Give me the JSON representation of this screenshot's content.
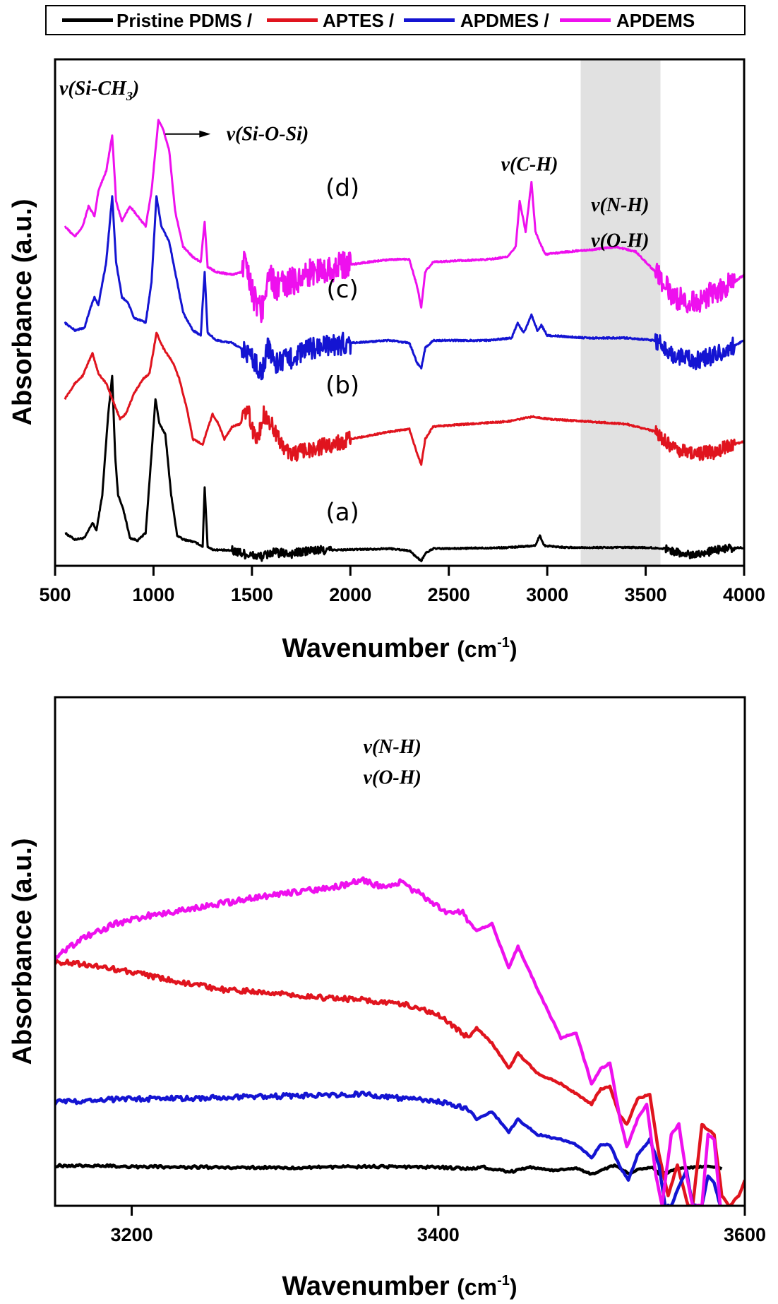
{
  "legend": {
    "entries": [
      {
        "label": "Pristine PDMS /",
        "color": "#000000"
      },
      {
        "label": "APTES /",
        "color": "#e0141e"
      },
      {
        "label": "APDMES /",
        "color": "#1414d2"
      },
      {
        "label": "APDEMS",
        "color": "#ee10ee"
      }
    ]
  },
  "chart_data": [
    {
      "type": "line",
      "title": "",
      "xlabel": "Wavenumber (cm-1)",
      "xlabel_main": "Wavenumber ",
      "xlabel_unit": "(cm",
      "xlabel_sup": "-1",
      "xlabel_close": ")",
      "ylabel": "Absorbance (a.u.)",
      "xlim": [
        500,
        4000
      ],
      "ylim": [
        0,
        100
      ],
      "xticks": [
        500,
        1000,
        1500,
        2000,
        2500,
        3000,
        3500,
        4000
      ],
      "grid": false,
      "legend_position": "top",
      "highlight_band": {
        "from": 3170,
        "to": 3575,
        "color": "#e1e1e1"
      },
      "curve_labels": [
        {
          "text": "(d)",
          "x": 1960,
          "y": 73
        },
        {
          "text": "(c)",
          "x": 1960,
          "y": 53
        },
        {
          "text": "(b)",
          "x": 1960,
          "y": 34
        },
        {
          "text": "(a)",
          "x": 1960,
          "y": 9
        }
      ],
      "annotations": [
        {
          "text": "v(Si-CH",
          "sub": "3",
          "close": ")",
          "x": 540,
          "y": 93
        },
        {
          "text": "v(Si-O-Si)",
          "x": 1370,
          "y": 84,
          "arrow_from": 1060,
          "arrow_to": 1290
        },
        {
          "text": "v(C-H)",
          "x": 2910,
          "y": 78
        },
        {
          "text": "v(N-H)",
          "x": 3370,
          "y": 70
        },
        {
          "text": "v(O-H)",
          "x": 3370,
          "y": 63
        }
      ],
      "series": [
        {
          "name": "Pristine PDMS",
          "label": "(a)",
          "color": "#000000",
          "x": [
            550,
            600,
            650,
            690,
            710,
            740,
            770,
            790,
            805,
            820,
            840,
            860,
            880,
            920,
            960,
            990,
            1010,
            1030,
            1060,
            1090,
            1120,
            1150,
            1180,
            1220,
            1250,
            1260,
            1275,
            1300,
            1400,
            1500,
            1550,
            1600,
            1700,
            1800,
            2000,
            2200,
            2300,
            2340,
            2360,
            2380,
            2420,
            2500,
            2800,
            2900,
            2940,
            2962,
            2985,
            3100,
            3500,
            3600,
            3700,
            3800,
            3900,
            4000
          ],
          "y": [
            6.5,
            5.2,
            5.5,
            8.5,
            7.0,
            14.0,
            30.0,
            37.5,
            22.0,
            14.0,
            12.0,
            9.0,
            5.5,
            5.0,
            6.5,
            22.0,
            33.0,
            28.0,
            26.0,
            14.0,
            6.0,
            5.2,
            5.0,
            4.5,
            3.8,
            15.6,
            3.8,
            3.2,
            3.0,
            2.0,
            1.8,
            2.6,
            2.4,
            3.0,
            3.2,
            3.4,
            3.0,
            1.6,
            1.0,
            2.4,
            3.4,
            3.4,
            3.6,
            3.9,
            4.0,
            6.0,
            4.0,
            3.6,
            3.6,
            3.4,
            2.2,
            2.6,
            3.4,
            3.6
          ],
          "noisy": [
            [
              1400,
              1900,
              0.9
            ],
            [
              3600,
              3950,
              0.8
            ]
          ]
        },
        {
          "name": "APTES",
          "label": "(b)",
          "color": "#e0141e",
          "x": [
            550,
            600,
            640,
            690,
            720,
            760,
            800,
            830,
            860,
            900,
            950,
            980,
            1015,
            1050,
            1100,
            1130,
            1170,
            1200,
            1250,
            1300,
            1330,
            1360,
            1400,
            1440,
            1480,
            1500,
            1530,
            1560,
            1600,
            1650,
            1700,
            1800,
            2000,
            2200,
            2300,
            2340,
            2360,
            2380,
            2420,
            2600,
            2800,
            2930,
            3000,
            3200,
            3400,
            3550,
            3650,
            3750,
            3850,
            3950,
            4000
          ],
          "y": [
            33.0,
            36.0,
            37.5,
            42.0,
            38.0,
            36.0,
            32.0,
            29.0,
            30.0,
            34.0,
            37.0,
            38.0,
            46.0,
            43.0,
            40.0,
            37.0,
            31.0,
            25.0,
            24.0,
            30.0,
            28.0,
            25.0,
            27.5,
            28.0,
            31.0,
            27.0,
            25.0,
            30.0,
            28.0,
            24.0,
            22.0,
            23.0,
            25.0,
            26.5,
            27.0,
            22.0,
            20.0,
            25.0,
            27.5,
            28.0,
            28.5,
            29.5,
            29.0,
            28.5,
            28.0,
            26.5,
            23.0,
            22.0,
            22.5,
            24.0,
            24.5
          ],
          "noisy": [
            [
              1450,
              2000,
              1.6
            ],
            [
              3550,
              3950,
              1.4
            ]
          ]
        },
        {
          "name": "APDMES",
          "label": "(c)",
          "color": "#1414d2",
          "x": [
            550,
            600,
            650,
            680,
            700,
            720,
            760,
            790,
            810,
            840,
            870,
            900,
            960,
            990,
            1015,
            1040,
            1080,
            1110,
            1150,
            1200,
            1240,
            1260,
            1275,
            1320,
            1400,
            1480,
            1520,
            1550,
            1580,
            1620,
            1700,
            1800,
            2000,
            2200,
            2300,
            2340,
            2360,
            2380,
            2420,
            2700,
            2820,
            2850,
            2880,
            2920,
            2950,
            2970,
            3000,
            3200,
            3400,
            3550,
            3650,
            3750,
            3850,
            3950,
            4000
          ],
          "y": [
            48.0,
            46.5,
            47.0,
            51.0,
            53.0,
            51.5,
            60.0,
            73.0,
            60.0,
            53.0,
            52.0,
            49.0,
            48.0,
            56.0,
            73.0,
            67.0,
            64.0,
            58.0,
            50.0,
            46.5,
            45.5,
            58.0,
            46.0,
            44.5,
            44.0,
            42.0,
            40.0,
            38.0,
            43.0,
            40.0,
            41.0,
            43.0,
            44.0,
            44.5,
            44.0,
            40.0,
            39.0,
            43.0,
            44.5,
            44.5,
            45.0,
            48.0,
            46.0,
            49.5,
            46.5,
            47.5,
            45.5,
            45.0,
            45.0,
            44.5,
            41.5,
            40.5,
            41.5,
            43.5,
            44.5
          ],
          "noisy": [
            [
              1450,
              2000,
              2.2
            ],
            [
              3550,
              3950,
              1.8
            ]
          ]
        },
        {
          "name": "APDEMS",
          "label": "(d)",
          "color": "#ee10ee",
          "x": [
            550,
            600,
            640,
            670,
            700,
            720,
            760,
            790,
            810,
            840,
            880,
            920,
            960,
            990,
            1025,
            1050,
            1080,
            1110,
            1150,
            1200,
            1240,
            1260,
            1275,
            1320,
            1400,
            1450,
            1470,
            1490,
            1510,
            1550,
            1580,
            1620,
            1700,
            1800,
            2000,
            2200,
            2300,
            2340,
            2360,
            2380,
            2420,
            2700,
            2800,
            2840,
            2860,
            2890,
            2920,
            2940,
            2960,
            2990,
            3100,
            3250,
            3350,
            3450,
            3550,
            3650,
            3750,
            3850,
            3950,
            4000
          ],
          "y": [
            67.0,
            65.0,
            67.0,
            71.0,
            69.0,
            74.0,
            78.0,
            85.0,
            72.0,
            68.0,
            71.0,
            69.0,
            67.0,
            74.0,
            88.0,
            86.0,
            82.0,
            70.0,
            63.0,
            61.0,
            60.0,
            68.0,
            59.0,
            58.0,
            57.5,
            58.0,
            62.0,
            56.0,
            53.0,
            50.0,
            58.0,
            55.0,
            56.0,
            58.0,
            59.5,
            60.5,
            60.5,
            55.0,
            51.0,
            58.0,
            60.0,
            60.5,
            61.0,
            63.0,
            72.0,
            66.0,
            75.8,
            66.0,
            64.0,
            61.5,
            62.0,
            62.5,
            63.0,
            62.0,
            58.0,
            53.0,
            52.0,
            54.0,
            56.0,
            57.5
          ],
          "noisy": [
            [
              1450,
              2000,
              2.8
            ],
            [
              3550,
              3950,
              2.4
            ]
          ]
        }
      ]
    },
    {
      "type": "line",
      "title": "",
      "xlabel": "Wavenumber (cm-1)",
      "xlabel_main": "Wavenumber ",
      "xlabel_unit": "(cm",
      "xlabel_sup": "-1",
      "xlabel_close": ")",
      "ylabel": "Absorbance (a.u.)",
      "xlim": [
        3150,
        3600
      ],
      "ylim": [
        0,
        100
      ],
      "xticks": [
        3200,
        3400,
        3600
      ],
      "grid": false,
      "annotations": [
        {
          "text": "v(N-H)",
          "x": 3370,
          "y": 89
        },
        {
          "text": "v(O-H)",
          "x": 3370,
          "y": 83
        }
      ],
      "series": [
        {
          "name": "Pristine PDMS",
          "color": "#000000",
          "x": [
            3150,
            3180,
            3200,
            3250,
            3300,
            3350,
            3400,
            3420,
            3430,
            3446,
            3460,
            3475,
            3490,
            3500,
            3505,
            3515,
            3525,
            3530,
            3540,
            3545,
            3555,
            3560,
            3575,
            3585
          ],
          "y": [
            7.9,
            7.9,
            7.7,
            7.6,
            7.5,
            7.7,
            7.6,
            7.3,
            7.6,
            6.6,
            7.6,
            7.0,
            7.4,
            6.2,
            6.8,
            8.0,
            6.2,
            7.2,
            7.6,
            6.0,
            7.2,
            7.4,
            7.8,
            7.4
          ],
          "noisy": [
            [
              3150,
              3450,
              0.25
            ]
          ]
        },
        {
          "name": "APTES",
          "color": "#e0141e",
          "x": [
            3150,
            3170,
            3200,
            3230,
            3260,
            3290,
            3320,
            3350,
            3380,
            3400,
            3420,
            3425,
            3435,
            3446,
            3452,
            3465,
            3480,
            3490,
            3500,
            3506,
            3512,
            3518,
            3523,
            3530,
            3538,
            3544,
            3550,
            3556,
            3563,
            3566,
            3572,
            3580,
            3585,
            3590,
            3596,
            3600
          ],
          "y": [
            48.0,
            47.5,
            46.0,
            44.0,
            42.5,
            42.0,
            41.0,
            40.5,
            39.5,
            37.5,
            33.0,
            35.0,
            32.0,
            27.0,
            30.0,
            26.0,
            24.0,
            22.0,
            20.0,
            23.0,
            23.5,
            18.0,
            16.0,
            21.0,
            22.0,
            10.0,
            2.0,
            8.0,
            0.0,
            0.0,
            16.0,
            14.0,
            2.0,
            0.0,
            2.0,
            5.0
          ],
          "noisy": [
            [
              3150,
              3420,
              0.5
            ]
          ]
        },
        {
          "name": "APDMES",
          "color": "#1414d2",
          "x": [
            3150,
            3180,
            3200,
            3250,
            3300,
            3350,
            3380,
            3400,
            3420,
            3425,
            3435,
            3446,
            3452,
            3465,
            3480,
            3490,
            3500,
            3506,
            3512,
            3518,
            3524,
            3530,
            3538,
            3544,
            3548,
            3552,
            3556,
            3562,
            3566,
            3572,
            3576,
            3580,
            3584
          ],
          "y": [
            20.4,
            20.8,
            21.0,
            21.2,
            21.6,
            22.0,
            21.0,
            20.5,
            19.0,
            17.0,
            18.5,
            14.5,
            17.0,
            14.0,
            13.0,
            12.0,
            9.5,
            12.0,
            12.0,
            8.0,
            5.0,
            10.0,
            13.0,
            8.0,
            0.0,
            0.0,
            3.0,
            7.0,
            0.0,
            0.0,
            6.0,
            4.5,
            0.0
          ],
          "noisy": [
            [
              3150,
              3420,
              0.5
            ]
          ]
        },
        {
          "name": "APDEMS",
          "color": "#ee10ee",
          "x": [
            3150,
            3170,
            3190,
            3210,
            3240,
            3270,
            3300,
            3330,
            3350,
            3365,
            3375,
            3390,
            3405,
            3415,
            3425,
            3435,
            3446,
            3452,
            3465,
            3480,
            3490,
            3500,
            3506,
            3512,
            3518,
            3523,
            3530,
            3536,
            3542,
            3546,
            3552,
            3557,
            3562,
            3566,
            3572,
            3576,
            3580,
            3584
          ],
          "y": [
            49.0,
            53.0,
            55.5,
            57.0,
            58.5,
            60.0,
            61.5,
            62.5,
            64.0,
            62.5,
            63.5,
            61.0,
            57.5,
            58.0,
            54.0,
            55.5,
            46.8,
            51.0,
            42.5,
            33.0,
            34.0,
            24.0,
            27.0,
            28.0,
            18.0,
            11.5,
            17.0,
            20.0,
            6.0,
            0.0,
            14.0,
            16.0,
            6.0,
            0.0,
            0.0,
            14.0,
            13.0,
            0.0
          ],
          "noisy": [
            [
              3150,
              3420,
              0.6
            ]
          ]
        }
      ]
    }
  ]
}
